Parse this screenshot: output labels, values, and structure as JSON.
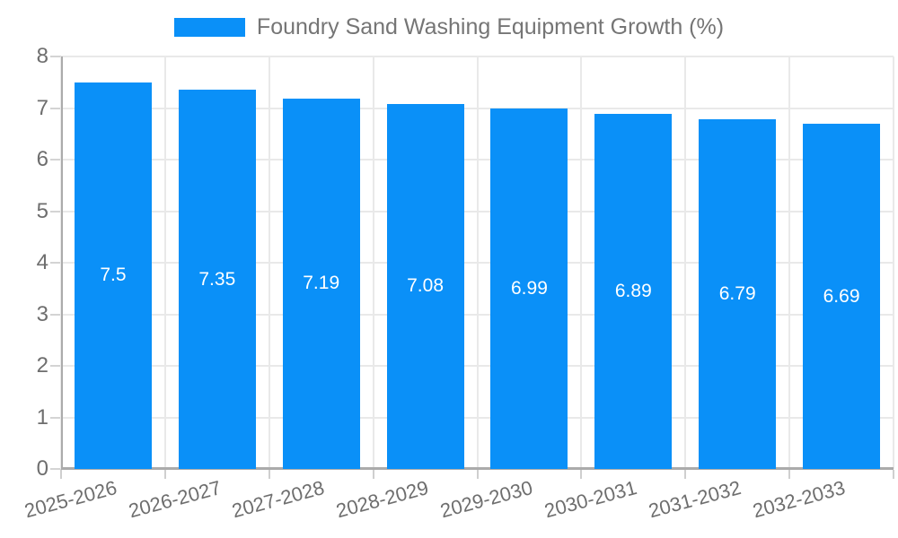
{
  "legend": {
    "label": "Foundry Sand Washing Equipment Growth (%)"
  },
  "chart_data": {
    "type": "bar",
    "title": "",
    "xlabel": "",
    "ylabel": "",
    "series_name": "Foundry Sand Washing Equipment Growth (%)",
    "categories": [
      "2025-2026",
      "2026-2027",
      "2027-2028",
      "2028-2029",
      "2029-2030",
      "2030-2031",
      "2031-2032",
      "2032-2033"
    ],
    "values": [
      7.5,
      7.35,
      7.19,
      7.08,
      6.99,
      6.89,
      6.79,
      6.69
    ],
    "value_labels": [
      "7.5",
      "7.35",
      "7.19",
      "7.08",
      "6.99",
      "6.89",
      "6.79",
      "6.69"
    ],
    "ylim": [
      0,
      8
    ],
    "y_ticks": [
      0,
      1,
      2,
      3,
      4,
      5,
      6,
      7,
      8
    ],
    "grid": true,
    "legend_position": "top"
  },
  "colors": {
    "bar": "#0a90f8",
    "grid": "#e9e9e9",
    "axis": "#ababab",
    "tick_text": "#6e6e6e",
    "value_label": "#ffffff",
    "legend_text": "#757575",
    "background": "#ffffff"
  }
}
